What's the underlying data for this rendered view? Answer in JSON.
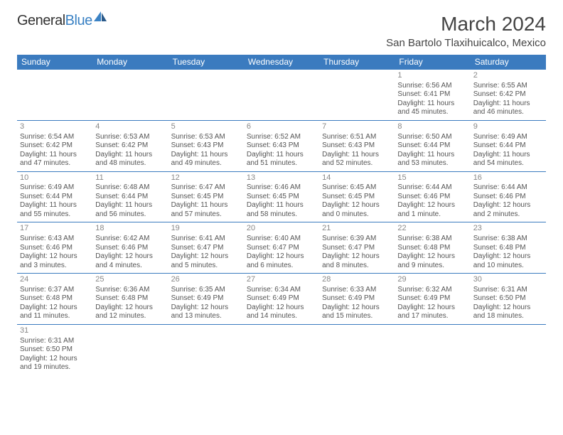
{
  "logo": {
    "word1": "General",
    "word2": "Blue"
  },
  "title": "March 2024",
  "location": "San Bartolo Tlaxihuicalco, Mexico",
  "colors": {
    "header_bg": "#3b7bbf",
    "header_text": "#ffffff",
    "border": "#3b7bbf",
    "daynum": "#888888",
    "body_text": "#555555",
    "logo_blue": "#3b82c4"
  },
  "weekdays": [
    "Sunday",
    "Monday",
    "Tuesday",
    "Wednesday",
    "Thursday",
    "Friday",
    "Saturday"
  ],
  "weeks": [
    [
      null,
      null,
      null,
      null,
      null,
      {
        "n": "1",
        "sr": "6:56 AM",
        "ss": "6:41 PM",
        "dl": "11 hours and 45 minutes."
      },
      {
        "n": "2",
        "sr": "6:55 AM",
        "ss": "6:42 PM",
        "dl": "11 hours and 46 minutes."
      }
    ],
    [
      {
        "n": "3",
        "sr": "6:54 AM",
        "ss": "6:42 PM",
        "dl": "11 hours and 47 minutes."
      },
      {
        "n": "4",
        "sr": "6:53 AM",
        "ss": "6:42 PM",
        "dl": "11 hours and 48 minutes."
      },
      {
        "n": "5",
        "sr": "6:53 AM",
        "ss": "6:43 PM",
        "dl": "11 hours and 49 minutes."
      },
      {
        "n": "6",
        "sr": "6:52 AM",
        "ss": "6:43 PM",
        "dl": "11 hours and 51 minutes."
      },
      {
        "n": "7",
        "sr": "6:51 AM",
        "ss": "6:43 PM",
        "dl": "11 hours and 52 minutes."
      },
      {
        "n": "8",
        "sr": "6:50 AM",
        "ss": "6:44 PM",
        "dl": "11 hours and 53 minutes."
      },
      {
        "n": "9",
        "sr": "6:49 AM",
        "ss": "6:44 PM",
        "dl": "11 hours and 54 minutes."
      }
    ],
    [
      {
        "n": "10",
        "sr": "6:49 AM",
        "ss": "6:44 PM",
        "dl": "11 hours and 55 minutes."
      },
      {
        "n": "11",
        "sr": "6:48 AM",
        "ss": "6:44 PM",
        "dl": "11 hours and 56 minutes."
      },
      {
        "n": "12",
        "sr": "6:47 AM",
        "ss": "6:45 PM",
        "dl": "11 hours and 57 minutes."
      },
      {
        "n": "13",
        "sr": "6:46 AM",
        "ss": "6:45 PM",
        "dl": "11 hours and 58 minutes."
      },
      {
        "n": "14",
        "sr": "6:45 AM",
        "ss": "6:45 PM",
        "dl": "12 hours and 0 minutes."
      },
      {
        "n": "15",
        "sr": "6:44 AM",
        "ss": "6:46 PM",
        "dl": "12 hours and 1 minute."
      },
      {
        "n": "16",
        "sr": "6:44 AM",
        "ss": "6:46 PM",
        "dl": "12 hours and 2 minutes."
      }
    ],
    [
      {
        "n": "17",
        "sr": "6:43 AM",
        "ss": "6:46 PM",
        "dl": "12 hours and 3 minutes."
      },
      {
        "n": "18",
        "sr": "6:42 AM",
        "ss": "6:46 PM",
        "dl": "12 hours and 4 minutes."
      },
      {
        "n": "19",
        "sr": "6:41 AM",
        "ss": "6:47 PM",
        "dl": "12 hours and 5 minutes."
      },
      {
        "n": "20",
        "sr": "6:40 AM",
        "ss": "6:47 PM",
        "dl": "12 hours and 6 minutes."
      },
      {
        "n": "21",
        "sr": "6:39 AM",
        "ss": "6:47 PM",
        "dl": "12 hours and 8 minutes."
      },
      {
        "n": "22",
        "sr": "6:38 AM",
        "ss": "6:48 PM",
        "dl": "12 hours and 9 minutes."
      },
      {
        "n": "23",
        "sr": "6:38 AM",
        "ss": "6:48 PM",
        "dl": "12 hours and 10 minutes."
      }
    ],
    [
      {
        "n": "24",
        "sr": "6:37 AM",
        "ss": "6:48 PM",
        "dl": "12 hours and 11 minutes."
      },
      {
        "n": "25",
        "sr": "6:36 AM",
        "ss": "6:48 PM",
        "dl": "12 hours and 12 minutes."
      },
      {
        "n": "26",
        "sr": "6:35 AM",
        "ss": "6:49 PM",
        "dl": "12 hours and 13 minutes."
      },
      {
        "n": "27",
        "sr": "6:34 AM",
        "ss": "6:49 PM",
        "dl": "12 hours and 14 minutes."
      },
      {
        "n": "28",
        "sr": "6:33 AM",
        "ss": "6:49 PM",
        "dl": "12 hours and 15 minutes."
      },
      {
        "n": "29",
        "sr": "6:32 AM",
        "ss": "6:49 PM",
        "dl": "12 hours and 17 minutes."
      },
      {
        "n": "30",
        "sr": "6:31 AM",
        "ss": "6:50 PM",
        "dl": "12 hours and 18 minutes."
      }
    ],
    [
      {
        "n": "31",
        "sr": "6:31 AM",
        "ss": "6:50 PM",
        "dl": "12 hours and 19 minutes."
      },
      null,
      null,
      null,
      null,
      null,
      null
    ]
  ],
  "labels": {
    "sunrise": "Sunrise:",
    "sunset": "Sunset:",
    "daylight": "Daylight:"
  }
}
